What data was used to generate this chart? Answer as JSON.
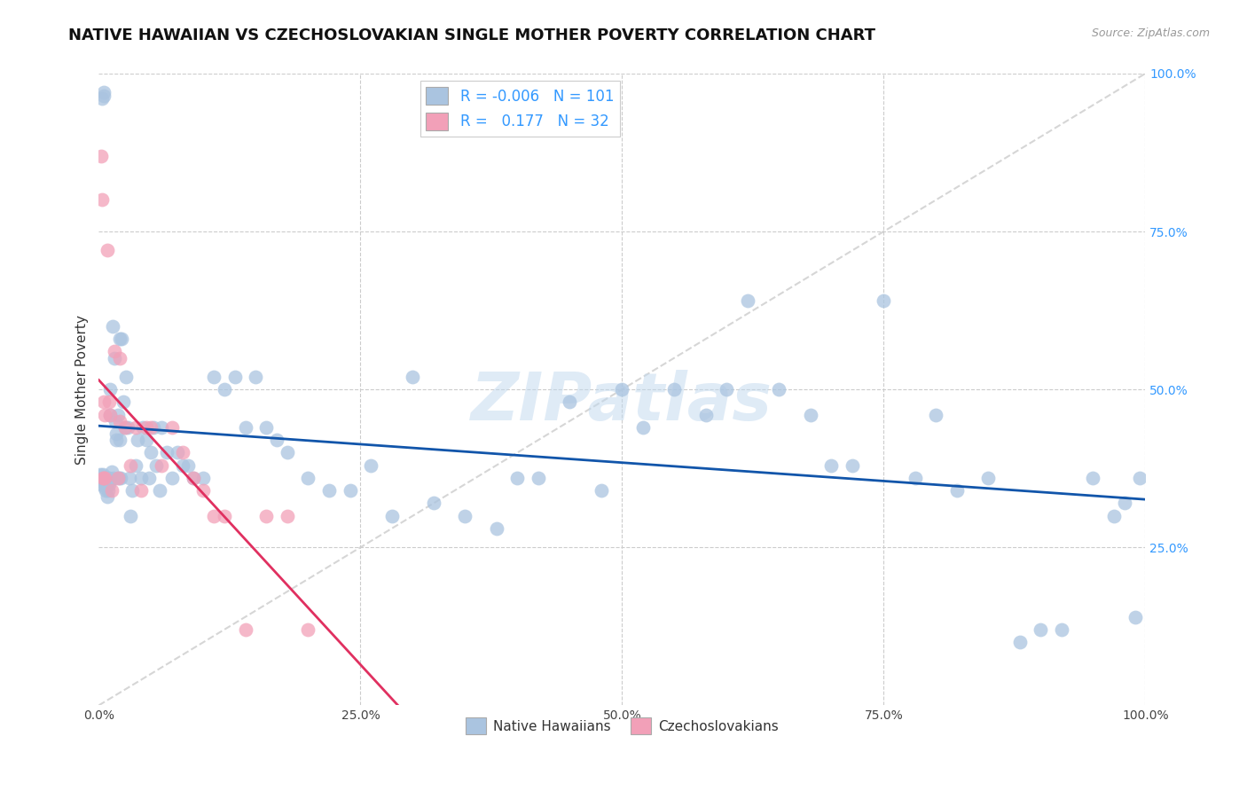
{
  "title": "NATIVE HAWAIIAN VS CZECHOSLOVAKIAN SINGLE MOTHER POVERTY CORRELATION CHART",
  "source": "Source: ZipAtlas.com",
  "ylabel": "Single Mother Poverty",
  "r_hawaiian": -0.006,
  "n_hawaiian": 101,
  "r_czech": 0.177,
  "n_czech": 32,
  "legend_label1": "Native Hawaiians",
  "legend_label2": "Czechoslovakians",
  "color_hawaiian": "#aac4e0",
  "color_czech": "#f2a0b8",
  "color_hawaiian_line": "#1155aa",
  "color_czech_line": "#e03060",
  "color_diagonal": "#cccccc",
  "watermark": "ZIPatlas",
  "background_color": "#ffffff",
  "grid_color": "#cccccc",
  "hawaiian_x": [
    0.3,
    0.5,
    0.5,
    0.8,
    0.9,
    1.0,
    1.0,
    1.1,
    1.2,
    1.3,
    1.5,
    1.6,
    1.7,
    1.8,
    2.0,
    2.0,
    2.1,
    2.2,
    2.3,
    2.5,
    2.6,
    2.8,
    3.0,
    3.2,
    3.5,
    3.7,
    4.0,
    4.2,
    4.5,
    4.8,
    5.0,
    5.2,
    5.5,
    5.8,
    6.0,
    6.5,
    7.0,
    7.5,
    8.0,
    8.5,
    9.0,
    10.0,
    11.0,
    12.0,
    13.0,
    14.0,
    15.0,
    16.0,
    17.0,
    18.0,
    20.0,
    22.0,
    24.0,
    26.0,
    28.0,
    30.0,
    32.0,
    35.0,
    38.0,
    40.0,
    42.0,
    45.0,
    48.0,
    50.0,
    52.0,
    55.0,
    58.0,
    60.0,
    62.0,
    65.0,
    68.0,
    70.0,
    72.0,
    75.0,
    78.0,
    80.0,
    82.0,
    85.0,
    88.0,
    90.0,
    92.0,
    95.0,
    97.0,
    98.0,
    99.0,
    99.5,
    0.1,
    0.15,
    0.25,
    0.35,
    0.45,
    0.55,
    0.65,
    0.75,
    0.85,
    0.95,
    1.1,
    1.4,
    1.7,
    1.9,
    2.9
  ],
  "hawaiian_y": [
    96.0,
    97.0,
    96.5,
    33.0,
    34.0,
    35.0,
    36.0,
    50.0,
    37.0,
    60.0,
    55.0,
    45.0,
    43.0,
    46.0,
    42.0,
    58.0,
    36.0,
    58.0,
    48.0,
    44.0,
    52.0,
    44.0,
    30.0,
    34.0,
    38.0,
    42.0,
    36.0,
    44.0,
    42.0,
    36.0,
    40.0,
    44.0,
    38.0,
    34.0,
    44.0,
    40.0,
    36.0,
    40.0,
    38.0,
    38.0,
    36.0,
    36.0,
    52.0,
    50.0,
    52.0,
    44.0,
    52.0,
    44.0,
    42.0,
    40.0,
    36.0,
    34.0,
    34.0,
    38.0,
    30.0,
    52.0,
    32.0,
    30.0,
    28.0,
    36.0,
    36.0,
    48.0,
    34.0,
    50.0,
    44.0,
    50.0,
    46.0,
    50.0,
    64.0,
    50.0,
    46.0,
    38.0,
    38.0,
    64.0,
    36.0,
    46.0,
    34.0,
    36.0,
    10.0,
    12.0,
    12.0,
    36.0,
    30.0,
    32.0,
    14.0,
    36.0,
    36.5,
    35.5,
    35.0,
    36.5,
    35.5,
    34.5,
    34.0,
    35.0,
    36.0,
    35.5,
    46.0,
    36.0,
    42.0,
    36.0,
    36.0
  ],
  "czech_x": [
    0.2,
    0.3,
    0.5,
    0.6,
    0.8,
    1.0,
    1.2,
    1.5,
    1.8,
    2.0,
    2.0,
    2.5,
    3.0,
    3.5,
    4.0,
    4.5,
    5.0,
    6.0,
    7.0,
    8.0,
    9.0,
    10.0,
    11.0,
    12.0,
    14.0,
    16.0,
    18.0,
    20.0,
    0.4,
    0.45,
    0.55,
    1.1
  ],
  "czech_y": [
    87.0,
    80.0,
    48.0,
    46.0,
    72.0,
    48.0,
    34.0,
    56.0,
    36.0,
    55.0,
    45.0,
    44.0,
    38.0,
    44.0,
    34.0,
    44.0,
    44.0,
    38.0,
    44.0,
    40.0,
    36.0,
    34.0,
    30.0,
    30.0,
    12.0,
    30.0,
    30.0,
    12.0,
    36.0,
    36.0,
    36.0,
    46.0
  ]
}
